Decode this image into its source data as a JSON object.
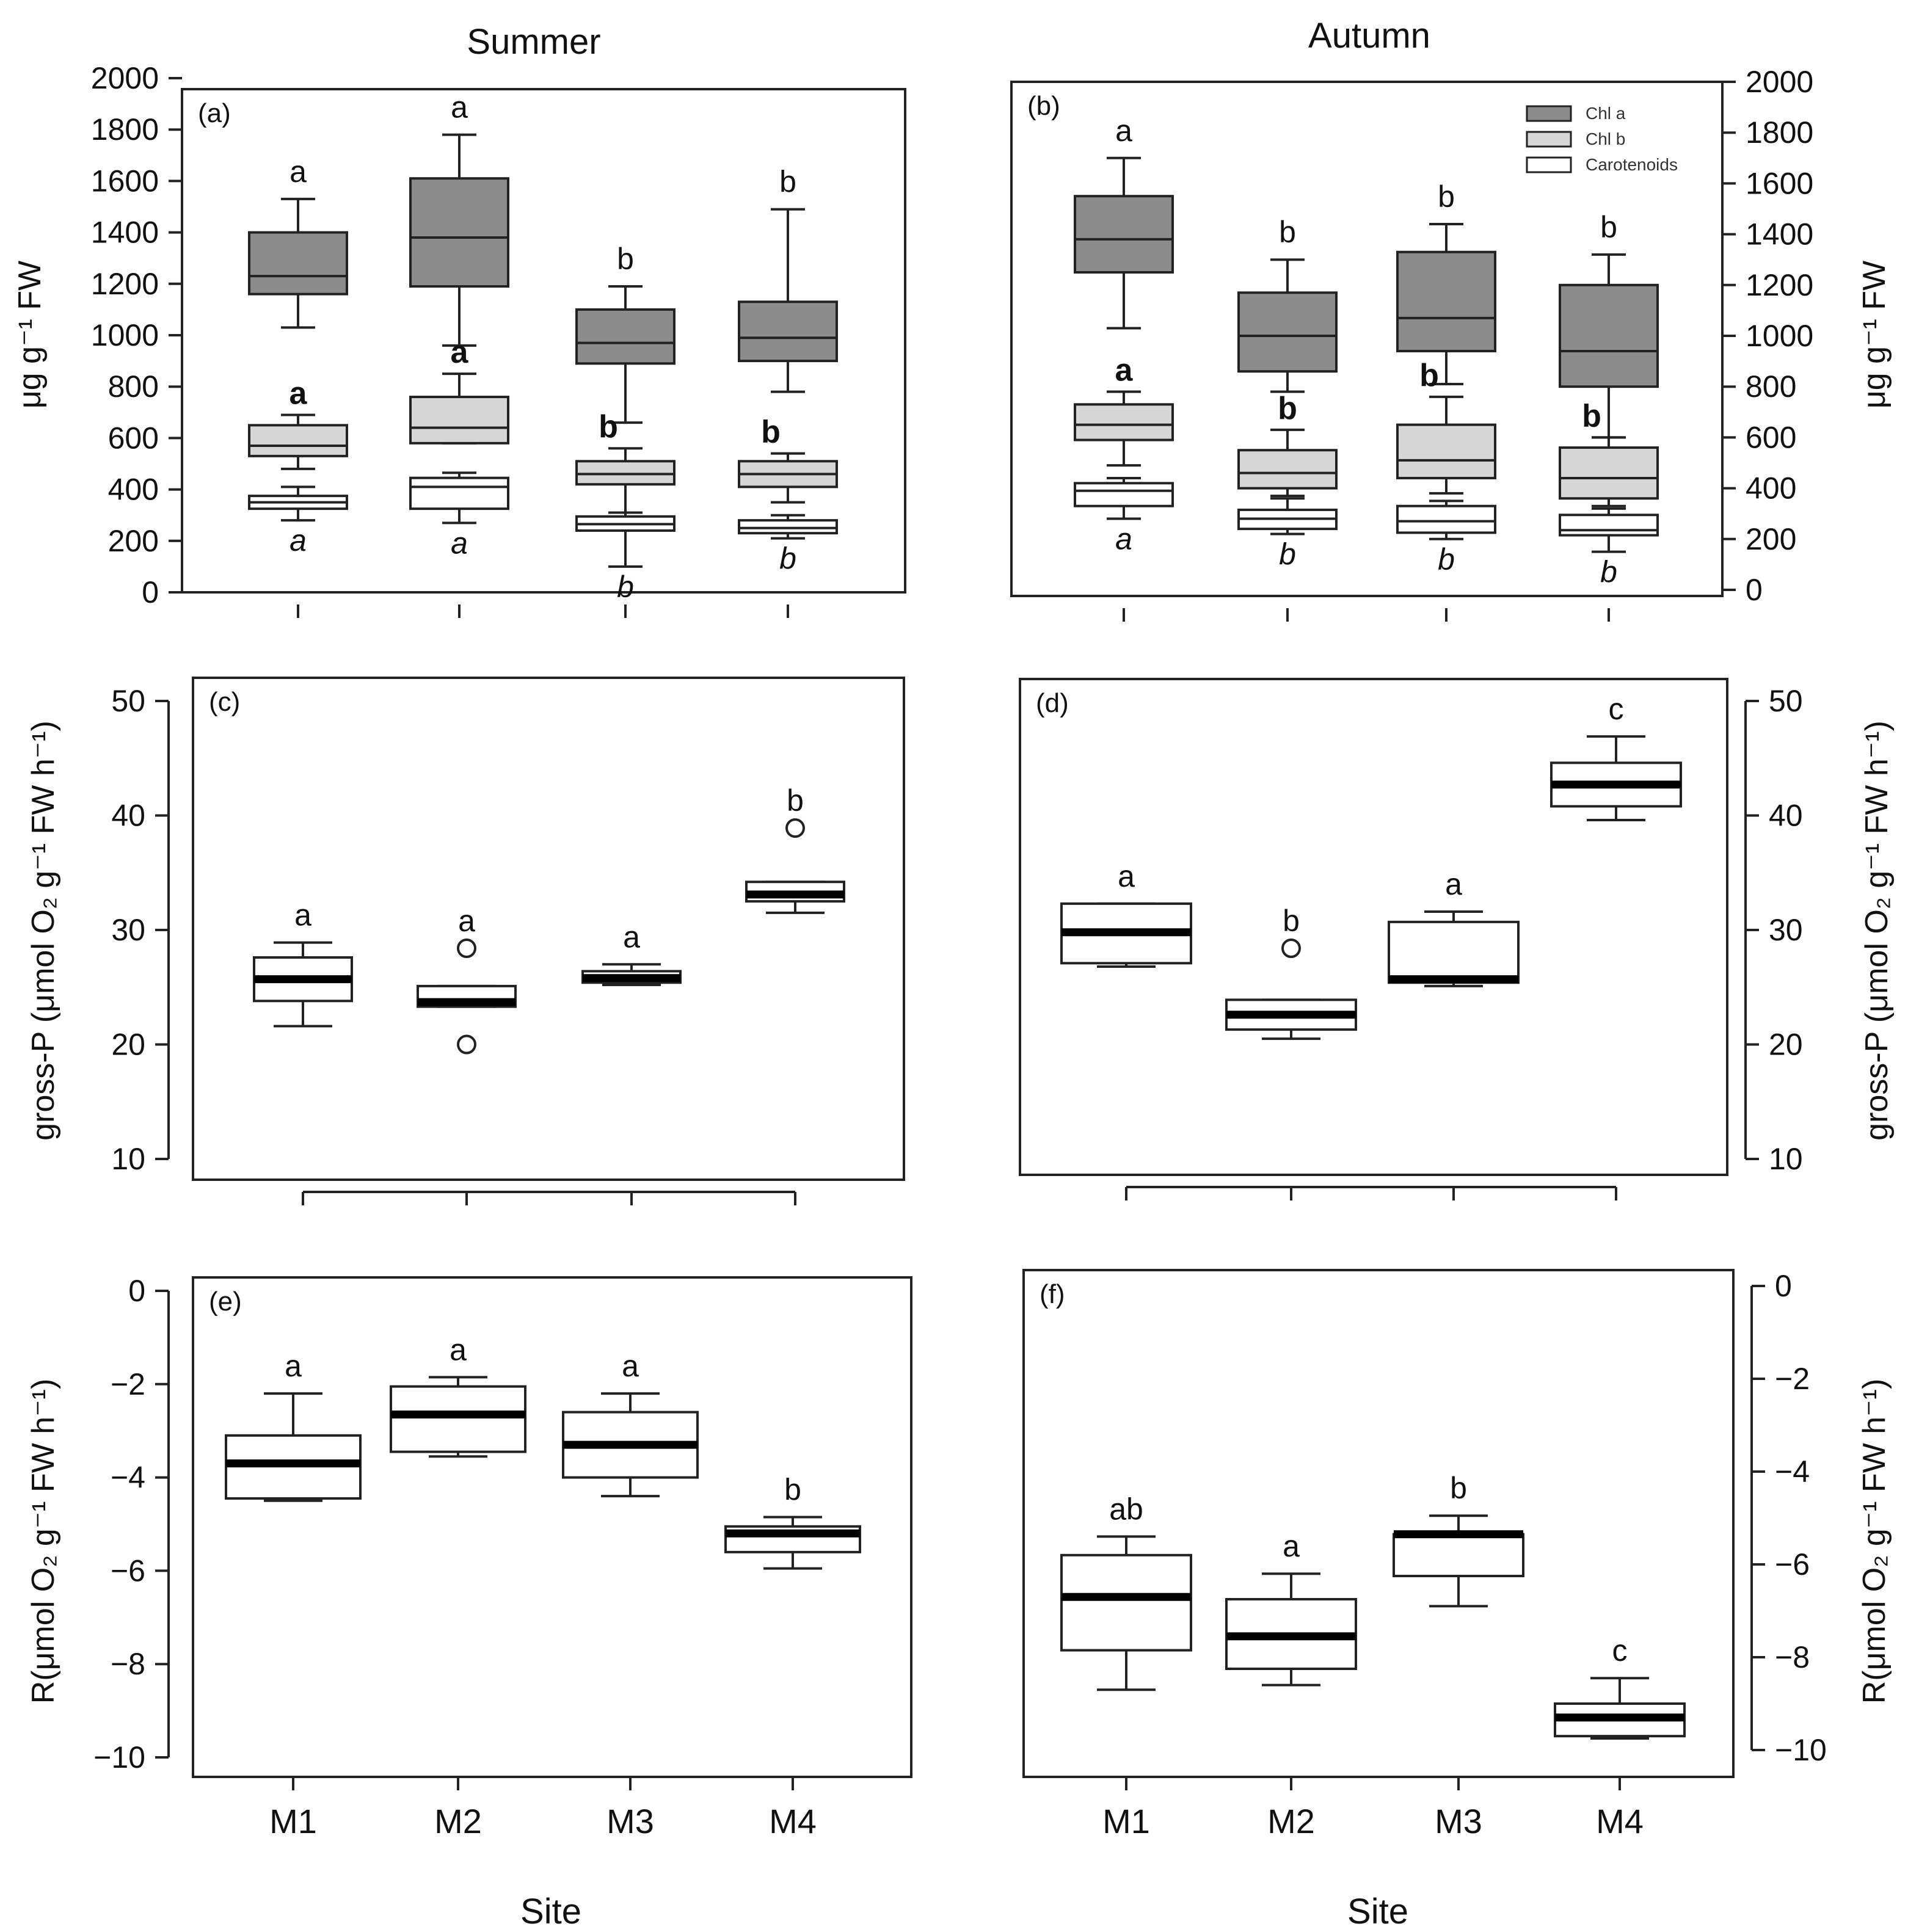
{
  "figure": {
    "season_left": "Summer",
    "season_right": "Autumn",
    "x_title": "Site"
  },
  "chart_data": [
    {
      "id": "a",
      "type": "box",
      "panel_label": "(a)",
      "ylabel": "μg g⁻¹ FW",
      "ylim": [
        0,
        2000
      ],
      "yticks": [
        0,
        200,
        400,
        600,
        800,
        1000,
        1200,
        1400,
        1600,
        1800,
        2000
      ],
      "categories": [
        "M1",
        "M2",
        "M3",
        "M4"
      ],
      "legend": [],
      "series": [
        {
          "name": "Chl a",
          "color": "#8c8c8c",
          "boxes": [
            {
              "category": "M1",
              "min": 1030,
              "q1": 1160,
              "median": 1230,
              "q3": 1400,
              "max": 1530
            },
            {
              "category": "M2",
              "min": 960,
              "q1": 1190,
              "median": 1380,
              "q3": 1610,
              "max": 1780
            },
            {
              "category": "M3",
              "min": 660,
              "q1": 890,
              "median": 970,
              "q3": 1100,
              "max": 1190
            },
            {
              "category": "M4",
              "min": 780,
              "q1": 900,
              "median": 990,
              "q3": 1130,
              "max": 1490
            }
          ],
          "letters": [
            "a",
            "a",
            "b",
            "b"
          ],
          "letter_style": "normal"
        },
        {
          "name": "Chl b",
          "color": "#d6d6d6",
          "boxes": [
            {
              "category": "M1",
              "min": 480,
              "q1": 530,
              "median": 570,
              "q3": 650,
              "max": 690
            },
            {
              "category": "M2",
              "min": 580,
              "q1": 580,
              "median": 640,
              "q3": 760,
              "max": 850
            },
            {
              "category": "M3",
              "min": 310,
              "q1": 420,
              "median": 460,
              "q3": 510,
              "max": 560
            },
            {
              "category": "M4",
              "min": 350,
              "q1": 410,
              "median": 460,
              "q3": 510,
              "max": 540
            }
          ],
          "letters": [
            "a",
            "a",
            "b",
            "b"
          ],
          "letter_style": "bold"
        },
        {
          "name": "Carotenoids",
          "color": "#ffffff",
          "boxes": [
            {
              "category": "M1",
              "min": 280,
              "q1": 325,
              "median": 350,
              "q3": 375,
              "max": 410
            },
            {
              "category": "M2",
              "min": 270,
              "q1": 325,
              "median": 410,
              "q3": 445,
              "max": 465
            },
            {
              "category": "M3",
              "min": 100,
              "q1": 240,
              "median": 265,
              "q3": 295,
              "max": 310
            },
            {
              "category": "M4",
              "min": 210,
              "q1": 230,
              "median": 250,
              "q3": 280,
              "max": 300
            }
          ],
          "letters": [
            "a",
            "a",
            "b",
            "b"
          ],
          "letter_style": "italic"
        }
      ]
    },
    {
      "id": "b",
      "type": "box",
      "panel_label": "(b)",
      "ylabel": "μg g⁻¹ FW",
      "ylim": [
        0,
        2000
      ],
      "yticks": [
        0,
        200,
        400,
        600,
        800,
        1000,
        1200,
        1400,
        1600,
        1800,
        2000
      ],
      "categories": [
        "M1",
        "M2",
        "M3",
        "M4"
      ],
      "legend": [
        "Chl a",
        "Chl b",
        "Carotenoids"
      ],
      "series": [
        {
          "name": "Chl a",
          "color": "#8c8c8c",
          "boxes": [
            {
              "category": "M1",
              "min": 1030,
              "q1": 1250,
              "median": 1380,
              "q3": 1550,
              "max": 1700
            },
            {
              "category": "M2",
              "min": 780,
              "q1": 860,
              "median": 1000,
              "q3": 1170,
              "max": 1300
            },
            {
              "category": "M3",
              "min": 810,
              "q1": 940,
              "median": 1070,
              "q3": 1330,
              "max": 1440
            },
            {
              "category": "M4",
              "min": 600,
              "q1": 800,
              "median": 940,
              "q3": 1200,
              "max": 1320
            }
          ],
          "letters": [
            "a",
            "b",
            "b",
            "b"
          ],
          "letter_style": "normal"
        },
        {
          "name": "Chl b",
          "color": "#d6d6d6",
          "boxes": [
            {
              "category": "M1",
              "min": 490,
              "q1": 590,
              "median": 650,
              "q3": 730,
              "max": 780
            },
            {
              "category": "M2",
              "min": 370,
              "q1": 400,
              "median": 460,
              "q3": 550,
              "max": 630
            },
            {
              "category": "M3",
              "min": 380,
              "q1": 440,
              "median": 510,
              "q3": 650,
              "max": 760
            },
            {
              "category": "M4",
              "min": 330,
              "q1": 360,
              "median": 440,
              "q3": 560,
              "max": 600
            }
          ],
          "letters": [
            "a",
            "b",
            "b",
            "b"
          ],
          "letter_style": "bold"
        },
        {
          "name": "Carotenoids",
          "color": "#ffffff",
          "boxes": [
            {
              "category": "M1",
              "min": 280,
              "q1": 330,
              "median": 390,
              "q3": 420,
              "max": 440
            },
            {
              "category": "M2",
              "min": 220,
              "q1": 240,
              "median": 280,
              "q3": 315,
              "max": 360
            },
            {
              "category": "M3",
              "min": 200,
              "q1": 225,
              "median": 270,
              "q3": 330,
              "max": 350
            },
            {
              "category": "M4",
              "min": 150,
              "q1": 215,
              "median": 235,
              "q3": 295,
              "max": 320
            }
          ],
          "letters": [
            "a",
            "b",
            "b",
            "b"
          ],
          "letter_style": "italic"
        }
      ]
    },
    {
      "id": "c",
      "type": "box",
      "panel_label": "(c)",
      "ylabel": "gross-P (μmol O₂ g⁻¹ FW h⁻¹)",
      "ylim": [
        10,
        50
      ],
      "yticks": [
        10,
        20,
        30,
        40,
        50
      ],
      "categories": [
        "M1",
        "M2",
        "M3",
        "M4"
      ],
      "legend": [],
      "series": [
        {
          "name": "gross-P",
          "color": "#ffffff",
          "boxes": [
            {
              "category": "M1",
              "min": 21.6,
              "q1": 23.8,
              "median": 25.7,
              "q3": 27.6,
              "max": 28.9,
              "outliers": []
            },
            {
              "category": "M2",
              "min": 23.3,
              "q1": 23.3,
              "median": 23.7,
              "q3": 25.1,
              "max": 25.1,
              "outliers": [
                28.4,
                20.0
              ]
            },
            {
              "category": "M3",
              "min": 25.2,
              "q1": 25.4,
              "median": 25.8,
              "q3": 26.4,
              "max": 27.0,
              "outliers": []
            },
            {
              "category": "M4",
              "min": 31.5,
              "q1": 32.5,
              "median": 33.1,
              "q3": 34.2,
              "max": 34.2,
              "outliers": [
                38.9
              ]
            }
          ],
          "letters": [
            "a",
            "a",
            "a",
            "b"
          ],
          "letter_style": "normal"
        }
      ]
    },
    {
      "id": "d",
      "type": "box",
      "panel_label": "(d)",
      "ylabel": "gross-P (μmol O₂ g⁻¹ FW h⁻¹)",
      "ylim": [
        10,
        50
      ],
      "yticks": [
        10,
        20,
        30,
        40,
        50
      ],
      "categories": [
        "M1",
        "M2",
        "M3",
        "M4"
      ],
      "legend": [],
      "series": [
        {
          "name": "gross-P",
          "color": "#ffffff",
          "boxes": [
            {
              "category": "M1",
              "min": 26.8,
              "q1": 27.1,
              "median": 29.8,
              "q3": 32.3,
              "max": 32.3,
              "outliers": []
            },
            {
              "category": "M2",
              "min": 20.5,
              "q1": 21.3,
              "median": 22.6,
              "q3": 23.9,
              "max": 23.9,
              "outliers": [
                28.4
              ]
            },
            {
              "category": "M3",
              "min": 25.1,
              "q1": 25.4,
              "median": 25.7,
              "q3": 30.7,
              "max": 31.6,
              "outliers": []
            },
            {
              "category": "M4",
              "min": 39.6,
              "q1": 40.8,
              "median": 42.7,
              "q3": 44.6,
              "max": 46.9,
              "outliers": []
            }
          ],
          "letters": [
            "a",
            "b",
            "a",
            "c"
          ],
          "letter_style": "normal"
        }
      ]
    },
    {
      "id": "e",
      "type": "box",
      "panel_label": "(e)",
      "ylabel": "R(μmol O₂ g⁻¹ FW h⁻¹)",
      "ylim": [
        -10,
        0
      ],
      "yticks": [
        0,
        -2,
        -4,
        -6,
        -8,
        -10
      ],
      "categories": [
        "M1",
        "M2",
        "M3",
        "M4"
      ],
      "legend": [],
      "series": [
        {
          "name": "R",
          "color": "#ffffff",
          "boxes": [
            {
              "category": "M1",
              "min": -4.5,
              "q1": -4.45,
              "median": -3.7,
              "q3": -3.1,
              "max": -2.2,
              "outliers": []
            },
            {
              "category": "M2",
              "min": -3.55,
              "q1": -3.45,
              "median": -2.65,
              "q3": -2.05,
              "max": -1.85,
              "outliers": []
            },
            {
              "category": "M3",
              "min": -4.4,
              "q1": -4.0,
              "median": -3.3,
              "q3": -2.6,
              "max": -2.2,
              "outliers": []
            },
            {
              "category": "M4",
              "min": -5.95,
              "q1": -5.6,
              "median": -5.2,
              "q3": -5.05,
              "max": -4.85,
              "outliers": []
            }
          ],
          "letters": [
            "a",
            "a",
            "a",
            "b"
          ],
          "letter_style": "normal"
        }
      ]
    },
    {
      "id": "f",
      "type": "box",
      "panel_label": "(f)",
      "ylabel": "R(μmol O₂ g⁻¹ FW h⁻¹)",
      "ylim": [
        -10,
        0
      ],
      "yticks": [
        0,
        -2,
        -4,
        -6,
        -8,
        -10
      ],
      "categories": [
        "M1",
        "M2",
        "M3",
        "M4"
      ],
      "legend": [],
      "series": [
        {
          "name": "R",
          "color": "#ffffff",
          "boxes": [
            {
              "category": "M1",
              "min": -8.7,
              "q1": -7.85,
              "median": -6.7,
              "q3": -5.8,
              "max": -5.4,
              "outliers": []
            },
            {
              "category": "M2",
              "min": -8.6,
              "q1": -8.25,
              "median": -7.55,
              "q3": -6.75,
              "max": -6.2,
              "outliers": []
            },
            {
              "category": "M3",
              "min": -6.9,
              "q1": -6.25,
              "median": -5.35,
              "q3": -5.35,
              "max": -4.95,
              "outliers": []
            },
            {
              "category": "M4",
              "min": -9.75,
              "q1": -9.7,
              "median": -9.3,
              "q3": -9.0,
              "max": -8.45,
              "outliers": []
            }
          ],
          "letters": [
            "ab",
            "a",
            "b",
            "c"
          ],
          "letter_style": "normal"
        }
      ]
    }
  ]
}
